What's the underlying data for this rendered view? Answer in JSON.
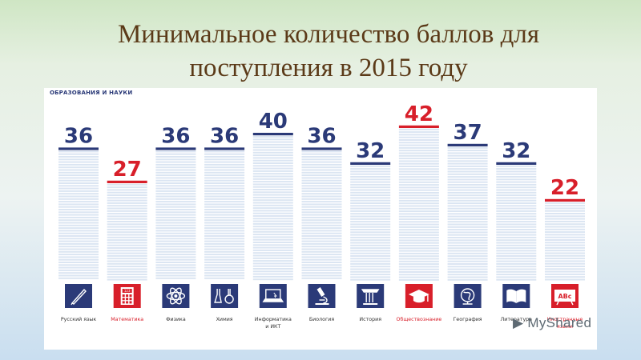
{
  "slide": {
    "title_line1": "Минимальное количество баллов для",
    "title_line2": "поступления в 2015 году"
  },
  "panel": {
    "header": "ОБРАЗОВАНИЯ И НАУКИ"
  },
  "watermark": {
    "text": "MyShared"
  },
  "colors": {
    "blue": "#2b3a78",
    "red": "#d81f2a",
    "bar_stripe": "#dbe5f2"
  },
  "chart_data": {
    "type": "bar",
    "categories": [
      "Русский язык",
      "Математика",
      "Физика",
      "Химия",
      "Информатика и ИКТ",
      "Биология",
      "История",
      "Обществознание",
      "География",
      "Литература",
      "Иностранные языки"
    ],
    "values": [
      36,
      27,
      36,
      36,
      40,
      36,
      32,
      42,
      37,
      32,
      22
    ],
    "highlight": [
      false,
      true,
      false,
      false,
      false,
      false,
      false,
      true,
      false,
      false,
      true
    ],
    "icons": [
      "pen-icon",
      "calculator-icon",
      "atom-icon",
      "flask-icon",
      "laptop-icon",
      "microscope-icon",
      "column-icon",
      "graduation-cap-icon",
      "globe-icon",
      "book-icon",
      "abc-sign-icon"
    ],
    "icon_text": {
      "calculator": "123",
      "abc": "ABc"
    },
    "ylim": [
      0,
      44
    ],
    "title": "",
    "xlabel": "",
    "ylabel": ""
  }
}
